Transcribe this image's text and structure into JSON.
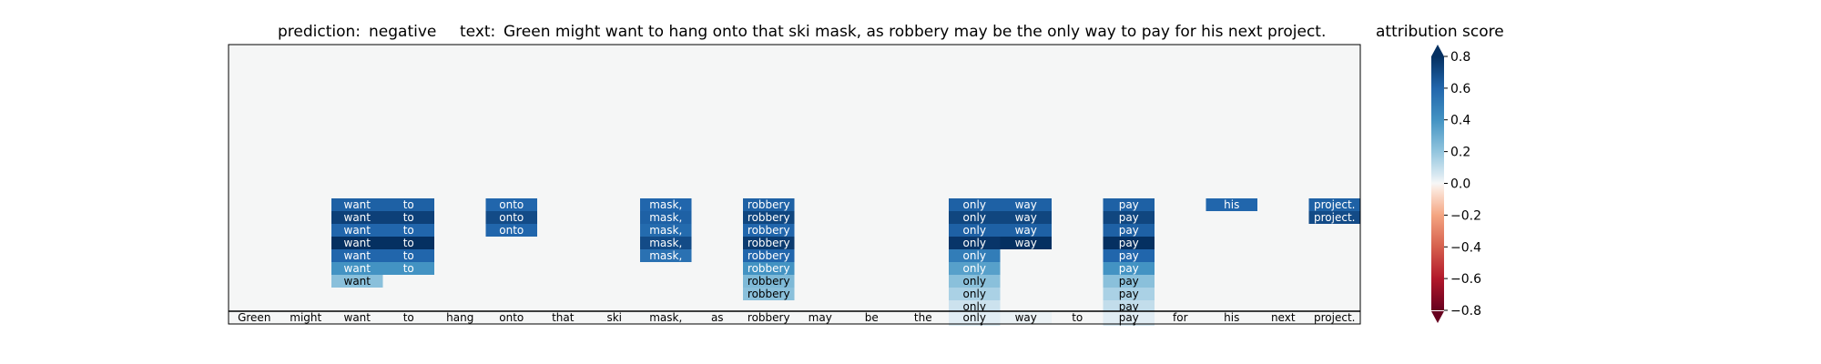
{
  "header": {
    "prediction_label": "prediction:",
    "prediction_value": "negative",
    "text_label": "text:",
    "text_value": "Green might want to hang onto that ski mask, as robbery may be the only way to pay for his next project."
  },
  "colorbar": {
    "title": "attribution score",
    "min": -0.8,
    "max": 0.8,
    "ticks": [
      "0.8",
      "0.6",
      "0.4",
      "0.2",
      "0.0",
      "−0.2",
      "−0.4",
      "−0.6",
      "−0.8"
    ],
    "tick_values": [
      0.8,
      0.6,
      0.4,
      0.2,
      0.0,
      -0.2,
      -0.4,
      -0.6,
      -0.8
    ],
    "colormap": "RdBu"
  },
  "chart_data": {
    "type": "heatmap",
    "tokens": [
      "Green",
      "might",
      "want",
      "to",
      "hang",
      "onto",
      "that",
      "ski",
      "mask,",
      "as",
      "robbery",
      "may",
      "be",
      "the",
      "only",
      "way",
      "to",
      "pay",
      "for",
      "his",
      "next",
      "project."
    ],
    "n_layers": 10,
    "background_value": 0.0,
    "cells": [
      {
        "col": 2,
        "row": 0,
        "value": 0.62
      },
      {
        "col": 2,
        "row": 1,
        "value": 0.74
      },
      {
        "col": 2,
        "row": 2,
        "value": 0.6
      },
      {
        "col": 2,
        "row": 3,
        "value": 0.8
      },
      {
        "col": 2,
        "row": 4,
        "value": 0.6
      },
      {
        "col": 2,
        "row": 5,
        "value": 0.4
      },
      {
        "col": 2,
        "row": 6,
        "value": 0.22
      },
      {
        "col": 3,
        "row": 0,
        "value": 0.62
      },
      {
        "col": 3,
        "row": 1,
        "value": 0.74
      },
      {
        "col": 3,
        "row": 2,
        "value": 0.6
      },
      {
        "col": 3,
        "row": 3,
        "value": 0.8
      },
      {
        "col": 3,
        "row": 4,
        "value": 0.6
      },
      {
        "col": 3,
        "row": 5,
        "value": 0.4
      },
      {
        "col": 5,
        "row": 0,
        "value": 0.6
      },
      {
        "col": 5,
        "row": 1,
        "value": 0.7
      },
      {
        "col": 5,
        "row": 2,
        "value": 0.6
      },
      {
        "col": 8,
        "row": 0,
        "value": 0.6
      },
      {
        "col": 8,
        "row": 1,
        "value": 0.62
      },
      {
        "col": 8,
        "row": 2,
        "value": 0.58
      },
      {
        "col": 8,
        "row": 3,
        "value": 0.7
      },
      {
        "col": 8,
        "row": 4,
        "value": 0.55
      },
      {
        "col": 10,
        "row": 0,
        "value": 0.62
      },
      {
        "col": 10,
        "row": 1,
        "value": 0.72
      },
      {
        "col": 10,
        "row": 2,
        "value": 0.6
      },
      {
        "col": 10,
        "row": 3,
        "value": 0.76
      },
      {
        "col": 10,
        "row": 4,
        "value": 0.6
      },
      {
        "col": 10,
        "row": 5,
        "value": 0.4
      },
      {
        "col": 10,
        "row": 6,
        "value": 0.25
      },
      {
        "col": 10,
        "row": 7,
        "value": 0.22
      },
      {
        "col": 14,
        "row": 0,
        "value": 0.62
      },
      {
        "col": 14,
        "row": 1,
        "value": 0.72
      },
      {
        "col": 14,
        "row": 2,
        "value": 0.62
      },
      {
        "col": 14,
        "row": 3,
        "value": 0.78
      },
      {
        "col": 14,
        "row": 4,
        "value": 0.5
      },
      {
        "col": 14,
        "row": 5,
        "value": 0.35
      },
      {
        "col": 14,
        "row": 6,
        "value": 0.22
      },
      {
        "col": 14,
        "row": 7,
        "value": 0.15
      },
      {
        "col": 14,
        "row": 8,
        "value": 0.08
      },
      {
        "col": 14,
        "row": 9,
        "value": 0.05
      },
      {
        "col": 15,
        "row": 0,
        "value": 0.62
      },
      {
        "col": 15,
        "row": 1,
        "value": 0.72
      },
      {
        "col": 15,
        "row": 2,
        "value": 0.62
      },
      {
        "col": 15,
        "row": 3,
        "value": 0.8
      },
      {
        "col": 17,
        "row": 0,
        "value": 0.62
      },
      {
        "col": 17,
        "row": 1,
        "value": 0.72
      },
      {
        "col": 17,
        "row": 2,
        "value": 0.62
      },
      {
        "col": 17,
        "row": 3,
        "value": 0.8
      },
      {
        "col": 17,
        "row": 4,
        "value": 0.6
      },
      {
        "col": 17,
        "row": 5,
        "value": 0.4
      },
      {
        "col": 17,
        "row": 6,
        "value": 0.22
      },
      {
        "col": 17,
        "row": 7,
        "value": 0.15
      },
      {
        "col": 17,
        "row": 8,
        "value": 0.1
      },
      {
        "col": 17,
        "row": 9,
        "value": 0.06
      },
      {
        "col": 19,
        "row": 0,
        "value": 0.6
      },
      {
        "col": 21,
        "row": 0,
        "value": 0.62
      },
      {
        "col": 21,
        "row": 1,
        "value": 0.7
      }
    ],
    "baseline_row": [
      {
        "col": 14,
        "value": 0.04
      },
      {
        "col": 17,
        "value": 0.04
      },
      {
        "col": 15,
        "value": 0.02
      }
    ]
  }
}
